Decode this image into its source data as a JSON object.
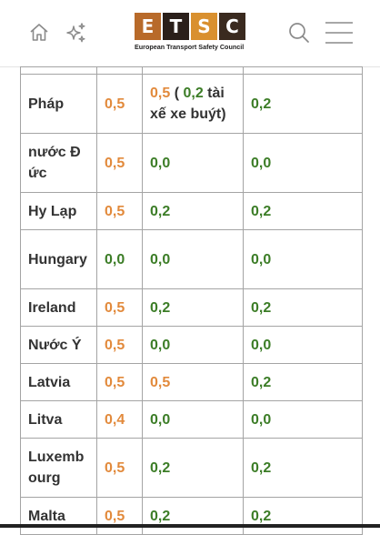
{
  "header": {
    "logo_letters": [
      "E",
      "T",
      "S",
      "C"
    ],
    "logo_colors": [
      "#b86a2a",
      "#2a1f1a",
      "#d9902f",
      "#3a2a1f"
    ],
    "logo_subtitle": "European Transport Safety Council",
    "icons": [
      "home-icon",
      "sparkle-icon",
      "search-icon",
      "menu-icon"
    ]
  },
  "colors": {
    "orange": "#e28a3c",
    "green": "#3c7d27",
    "text": "#333333"
  },
  "table": {
    "rows": [
      {
        "country": "Pháp",
        "c1": "0,5",
        "c1_color": "orange",
        "c2_parts": [
          {
            "text": "0,5",
            "color": "orange"
          },
          {
            "text": " ( ",
            "color": "dark"
          },
          {
            "text": "0,2",
            "color": "green"
          },
          {
            "text": " tài xế xe buýt)",
            "color": "dark"
          }
        ],
        "c3": "0,2",
        "c3_color": "green"
      },
      {
        "country": "nước Đức",
        "c1": "0,5",
        "c1_color": "orange",
        "c2_parts": [
          {
            "text": "0,0",
            "color": "green"
          }
        ],
        "c3": "0,0",
        "c3_color": "green"
      },
      {
        "country": "Hy Lạp",
        "c1": "0,5",
        "c1_color": "orange",
        "c2_parts": [
          {
            "text": "0,2",
            "color": "green"
          }
        ],
        "c3": "0,2",
        "c3_color": "green"
      },
      {
        "country": "Hungary",
        "c1": "0,0",
        "c1_color": "green",
        "c2_parts": [
          {
            "text": "0,0",
            "color": "green"
          }
        ],
        "c3": "0,0",
        "c3_color": "green"
      },
      {
        "country": "Ireland",
        "c1": "0,5",
        "c1_color": "orange",
        "c2_parts": [
          {
            "text": "0,2",
            "color": "green"
          }
        ],
        "c3": "0,2",
        "c3_color": "green"
      },
      {
        "country": "Nước Ý",
        "c1": "0,5",
        "c1_color": "orange",
        "c2_parts": [
          {
            "text": "0,0",
            "color": "green"
          }
        ],
        "c3": "0,0",
        "c3_color": "green"
      },
      {
        "country": "Latvia",
        "c1": "0,5",
        "c1_color": "orange",
        "c2_parts": [
          {
            "text": "0,5",
            "color": "orange"
          }
        ],
        "c3": "0,2",
        "c3_color": "green"
      },
      {
        "country": "Litva",
        "c1": "0,4",
        "c1_color": "orange",
        "c2_parts": [
          {
            "text": "0,0",
            "color": "green"
          }
        ],
        "c3": "0,0",
        "c3_color": "green"
      },
      {
        "country": "Luxembourg",
        "c1": "0,5",
        "c1_color": "orange",
        "c2_parts": [
          {
            "text": "0,2",
            "color": "green"
          }
        ],
        "c3": "0,2",
        "c3_color": "green"
      },
      {
        "country": "Malta",
        "c1": "0,5",
        "c1_color": "orange",
        "c2_parts": [
          {
            "text": "0,2",
            "color": "green"
          }
        ],
        "c3": "0,2",
        "c3_color": "green"
      }
    ]
  }
}
